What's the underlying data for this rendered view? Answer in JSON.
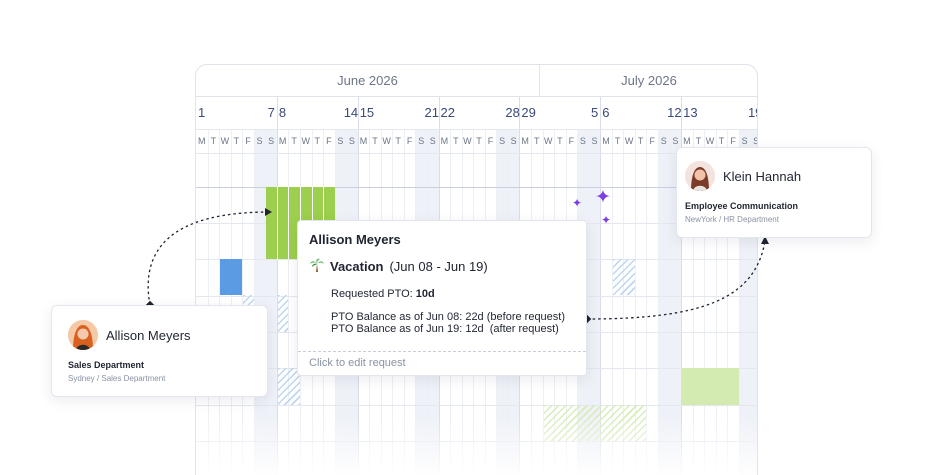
{
  "calendar": {
    "months": [
      "June 2026",
      "July 2026"
    ],
    "week_start_numbers": [
      "1",
      "8",
      "15",
      "22",
      "29",
      "6",
      "13"
    ],
    "week_end_numbers": [
      "7",
      "14",
      "21",
      "28",
      "5",
      "12",
      "19"
    ],
    "weekday_letters": [
      "M",
      "T",
      "W",
      "T",
      "F",
      "S",
      "S"
    ]
  },
  "popup": {
    "name": "Allison Meyers",
    "leave_icon": "palm-tree-icon",
    "leave_type": "Vacation",
    "leave_range": "(Jun 08 - Jun 19)",
    "requested_label": "Requested PTO: ",
    "requested_value": "10d",
    "balance_before": "PTO Balance as of Jun 08: 22d",
    "balance_before_note": "(before request)",
    "balance_after": "PTO Balance as of Jun 19: 12d",
    "balance_after_note": "(after request)",
    "footer": "Click to edit request"
  },
  "employees": [
    {
      "name": "Allison Meyers",
      "department": "Sales Department",
      "location": "Sydney / Sales Department"
    },
    {
      "name": "Klein Hannah",
      "department": "Employee Communication",
      "location": "NewYork / HR Department"
    }
  ],
  "colors": {
    "vacation_green": "#9ccf4d",
    "pto_blue": "#5b9be3",
    "sparkle_purple": "#7b3fe4"
  }
}
